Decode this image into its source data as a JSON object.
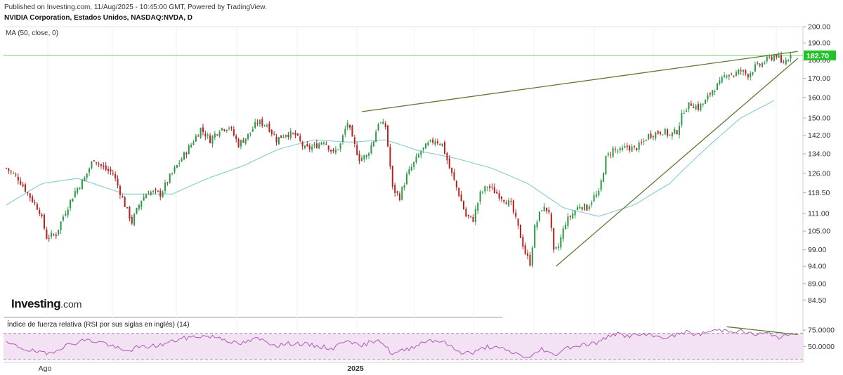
{
  "header": {
    "published": "Published on Investing.com, 11/Aug/2025 - 10:45:00 GMT, Powered by TradingView.",
    "title": "NVIDIA Corporation, Estados Unidos, NASDAQ:NVDA, D"
  },
  "indicator_label": "MA (50, close, 0)",
  "logo": {
    "main": "Investing",
    "suffix": ".com"
  },
  "rsi_label": "Índice de fuerza relativa (RSI por sus siglas en inglés) (14)",
  "colors": {
    "up": "#2e9b4a",
    "down": "#b52525",
    "ma": "#8ecfd4",
    "trend": "#5d7a34",
    "price_line": "#6bd16b",
    "rsi": "#b25ab7",
    "rsi_band": "#f2e2f4",
    "price_tag": "#22c22a"
  },
  "chart_data": [
    {
      "type": "candlestick",
      "title": "NVIDIA Corporation, Estados Unidos, NASDAQ:NVDA, D",
      "x_labels": [
        "Ago",
        "2025"
      ],
      "y_ticks": [
        84.5,
        89,
        94,
        99,
        105,
        111,
        118.5,
        126,
        134,
        142,
        150,
        160,
        170,
        180,
        190,
        200
      ],
      "y_tick_labels": [
        "84.50",
        "89.00",
        "94.00",
        "99.00",
        "105.00",
        "111.00",
        "118.50",
        "126.00",
        "134.00",
        "142.00",
        "150.00",
        "160.00",
        "170.00",
        "180.00",
        "190.00",
        "200.00"
      ],
      "ylim": [
        80,
        200
      ],
      "scale": "log",
      "last_price": 182.7,
      "last_price_label": "182.70",
      "close_path": [
        {
          "i": 0,
          "v": 128
        },
        {
          "i": 5,
          "v": 124
        },
        {
          "i": 10,
          "v": 117
        },
        {
          "i": 14,
          "v": 112
        },
        {
          "i": 17,
          "v": 103
        },
        {
          "i": 21,
          "v": 104
        },
        {
          "i": 24,
          "v": 110
        },
        {
          "i": 29,
          "v": 119
        },
        {
          "i": 33,
          "v": 124
        },
        {
          "i": 37,
          "v": 132
        },
        {
          "i": 41,
          "v": 128
        },
        {
          "i": 45,
          "v": 126
        },
        {
          "i": 50,
          "v": 114
        },
        {
          "i": 53,
          "v": 108
        },
        {
          "i": 57,
          "v": 116
        },
        {
          "i": 60,
          "v": 119
        },
        {
          "i": 65,
          "v": 118
        },
        {
          "i": 70,
          "v": 126
        },
        {
          "i": 74,
          "v": 132
        },
        {
          "i": 78,
          "v": 138
        },
        {
          "i": 82,
          "v": 145
        },
        {
          "i": 86,
          "v": 140
        },
        {
          "i": 90,
          "v": 145
        },
        {
          "i": 94,
          "v": 146
        },
        {
          "i": 98,
          "v": 138
        },
        {
          "i": 102,
          "v": 142
        },
        {
          "i": 106,
          "v": 148
        },
        {
          "i": 110,
          "v": 147
        },
        {
          "i": 114,
          "v": 140
        },
        {
          "i": 118,
          "v": 143
        },
        {
          "i": 122,
          "v": 142
        },
        {
          "i": 126,
          "v": 136
        },
        {
          "i": 130,
          "v": 137
        },
        {
          "i": 134,
          "v": 140
        },
        {
          "i": 138,
          "v": 134
        },
        {
          "i": 141,
          "v": 138
        },
        {
          "i": 144,
          "v": 148
        },
        {
          "i": 146,
          "v": 140
        },
        {
          "i": 149,
          "v": 132
        },
        {
          "i": 152,
          "v": 133
        },
        {
          "i": 155,
          "v": 140
        },
        {
          "i": 157,
          "v": 148
        },
        {
          "i": 160,
          "v": 146
        },
        {
          "i": 163,
          "v": 120
        },
        {
          "i": 166,
          "v": 117
        },
        {
          "i": 169,
          "v": 125
        },
        {
          "i": 172,
          "v": 130
        },
        {
          "i": 175,
          "v": 135
        },
        {
          "i": 178,
          "v": 138
        },
        {
          "i": 181,
          "v": 140
        },
        {
          "i": 184,
          "v": 138
        },
        {
          "i": 187,
          "v": 128
        },
        {
          "i": 191,
          "v": 118
        },
        {
          "i": 194,
          "v": 110
        },
        {
          "i": 197,
          "v": 109
        },
        {
          "i": 200,
          "v": 118
        },
        {
          "i": 203,
          "v": 121
        },
        {
          "i": 206,
          "v": 119
        },
        {
          "i": 209,
          "v": 117
        },
        {
          "i": 213,
          "v": 114
        },
        {
          "i": 216,
          "v": 106
        },
        {
          "i": 219,
          "v": 98
        },
        {
          "i": 221,
          "v": 95
        },
        {
          "i": 223,
          "v": 106
        },
        {
          "i": 226,
          "v": 113
        },
        {
          "i": 229,
          "v": 112
        },
        {
          "i": 231,
          "v": 98
        },
        {
          "i": 233,
          "v": 100
        },
        {
          "i": 236,
          "v": 108
        },
        {
          "i": 239,
          "v": 111
        },
        {
          "i": 242,
          "v": 114
        },
        {
          "i": 245,
          "v": 113
        },
        {
          "i": 248,
          "v": 117
        },
        {
          "i": 250,
          "v": 118
        },
        {
          "i": 253,
          "v": 132
        },
        {
          "i": 256,
          "v": 136
        },
        {
          "i": 259,
          "v": 135
        },
        {
          "i": 262,
          "v": 137
        },
        {
          "i": 265,
          "v": 136
        },
        {
          "i": 268,
          "v": 138
        },
        {
          "i": 271,
          "v": 142
        },
        {
          "i": 274,
          "v": 143
        },
        {
          "i": 277,
          "v": 144
        },
        {
          "i": 280,
          "v": 142
        },
        {
          "i": 283,
          "v": 144
        },
        {
          "i": 286,
          "v": 154
        },
        {
          "i": 289,
          "v": 157
        },
        {
          "i": 292,
          "v": 155
        },
        {
          "i": 295,
          "v": 158
        },
        {
          "i": 298,
          "v": 164
        },
        {
          "i": 301,
          "v": 167
        },
        {
          "i": 304,
          "v": 173
        },
        {
          "i": 307,
          "v": 172
        },
        {
          "i": 310,
          "v": 174
        },
        {
          "i": 313,
          "v": 172
        },
        {
          "i": 316,
          "v": 176
        },
        {
          "i": 319,
          "v": 178
        },
        {
          "i": 322,
          "v": 181
        },
        {
          "i": 325,
          "v": 183
        },
        {
          "i": 327,
          "v": 178
        },
        {
          "i": 329,
          "v": 180
        },
        {
          "i": 331,
          "v": 182.7
        }
      ],
      "sma50_path": [
        {
          "i": 0,
          "v": 114
        },
        {
          "i": 15,
          "v": 122
        },
        {
          "i": 30,
          "v": 124
        },
        {
          "i": 50,
          "v": 118
        },
        {
          "i": 70,
          "v": 118
        },
        {
          "i": 85,
          "v": 124
        },
        {
          "i": 100,
          "v": 129
        },
        {
          "i": 115,
          "v": 136
        },
        {
          "i": 130,
          "v": 140
        },
        {
          "i": 145,
          "v": 139
        },
        {
          "i": 160,
          "v": 140
        },
        {
          "i": 175,
          "v": 135
        },
        {
          "i": 190,
          "v": 132
        },
        {
          "i": 205,
          "v": 128
        },
        {
          "i": 220,
          "v": 122
        },
        {
          "i": 235,
          "v": 113
        },
        {
          "i": 250,
          "v": 110
        },
        {
          "i": 265,
          "v": 114
        },
        {
          "i": 280,
          "v": 122
        },
        {
          "i": 295,
          "v": 136
        },
        {
          "i": 310,
          "v": 150
        },
        {
          "i": 325,
          "v": 159
        }
      ],
      "trendlines": [
        {
          "from": {
            "i": 150,
            "v": 153
          },
          "to": {
            "i": 334,
            "v": 185
          }
        },
        {
          "from": {
            "i": 232,
            "v": 94
          },
          "to": {
            "i": 334,
            "v": 181
          }
        }
      ]
    },
    {
      "type": "line",
      "title": "Índice de fuerza relativa (RSI por sus siglas en inglés) (14)",
      "y_ticks": [
        50,
        75
      ],
      "y_tick_labels": [
        "50.0000",
        "75.0000"
      ],
      "ylim": [
        30,
        90
      ],
      "bands": [
        30,
        70
      ],
      "rsi_path": [
        {
          "i": 0,
          "v": 55
        },
        {
          "i": 10,
          "v": 44
        },
        {
          "i": 17,
          "v": 38
        },
        {
          "i": 24,
          "v": 50
        },
        {
          "i": 33,
          "v": 60
        },
        {
          "i": 41,
          "v": 56
        },
        {
          "i": 50,
          "v": 42
        },
        {
          "i": 55,
          "v": 48
        },
        {
          "i": 65,
          "v": 52
        },
        {
          "i": 74,
          "v": 62
        },
        {
          "i": 82,
          "v": 66
        },
        {
          "i": 90,
          "v": 64
        },
        {
          "i": 98,
          "v": 53
        },
        {
          "i": 106,
          "v": 62
        },
        {
          "i": 114,
          "v": 52
        },
        {
          "i": 122,
          "v": 55
        },
        {
          "i": 130,
          "v": 51
        },
        {
          "i": 138,
          "v": 47
        },
        {
          "i": 144,
          "v": 62
        },
        {
          "i": 149,
          "v": 49
        },
        {
          "i": 157,
          "v": 62
        },
        {
          "i": 163,
          "v": 38
        },
        {
          "i": 170,
          "v": 47
        },
        {
          "i": 178,
          "v": 60
        },
        {
          "i": 184,
          "v": 58
        },
        {
          "i": 191,
          "v": 42
        },
        {
          "i": 197,
          "v": 40
        },
        {
          "i": 203,
          "v": 50
        },
        {
          "i": 209,
          "v": 46
        },
        {
          "i": 216,
          "v": 38
        },
        {
          "i": 221,
          "v": 32
        },
        {
          "i": 226,
          "v": 47
        },
        {
          "i": 231,
          "v": 36
        },
        {
          "i": 236,
          "v": 48
        },
        {
          "i": 242,
          "v": 52
        },
        {
          "i": 250,
          "v": 56
        },
        {
          "i": 256,
          "v": 70
        },
        {
          "i": 262,
          "v": 66
        },
        {
          "i": 268,
          "v": 68
        },
        {
          "i": 274,
          "v": 65
        },
        {
          "i": 280,
          "v": 64
        },
        {
          "i": 286,
          "v": 72
        },
        {
          "i": 292,
          "v": 68
        },
        {
          "i": 298,
          "v": 74
        },
        {
          "i": 304,
          "v": 75
        },
        {
          "i": 310,
          "v": 73
        },
        {
          "i": 316,
          "v": 68
        },
        {
          "i": 322,
          "v": 70
        },
        {
          "i": 327,
          "v": 63
        },
        {
          "i": 331,
          "v": 68
        }
      ],
      "trendline": {
        "from": {
          "i": 304,
          "v": 80
        },
        "to": {
          "i": 334,
          "v": 68
        }
      }
    }
  ]
}
